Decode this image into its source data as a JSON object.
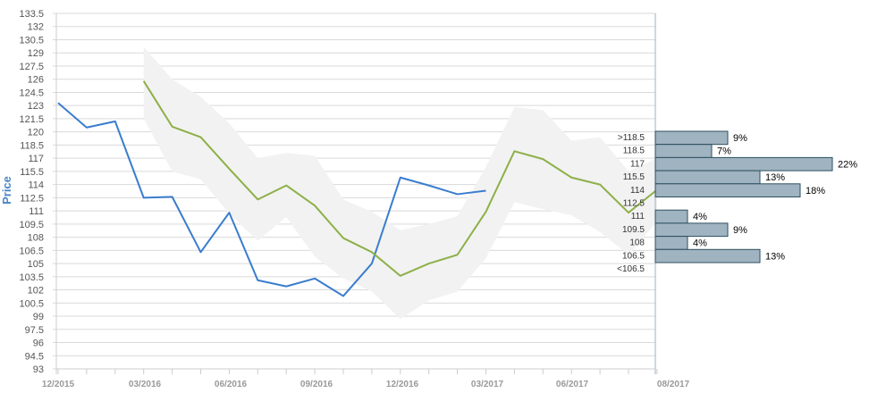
{
  "chart_data": {
    "type": "line",
    "ylabel": "Price",
    "ylim": [
      93,
      133.5
    ],
    "y_ticks": [
      "133.5",
      "132",
      "130.5",
      "129",
      "127.5",
      "126",
      "124.5",
      "123",
      "121.5",
      "120",
      "118.5",
      "117",
      "115.5",
      "114",
      "112.5",
      "111",
      "109.5",
      "108",
      "106.5",
      "105",
      "103.5",
      "102",
      "100.5",
      "99",
      "97.5",
      "96",
      "94.5",
      "93"
    ],
    "x_tick_labels": [
      "12/2015",
      "03/2016",
      "06/2016",
      "09/2016",
      "12/2016",
      "03/2017",
      "06/2017",
      "08/2017"
    ],
    "grid": true,
    "series": [
      {
        "color": "#3a7dce",
        "x": [
          "2015-12",
          "2016-01",
          "2016-02",
          "2016-03",
          "2016-04",
          "2016-05",
          "2016-06",
          "2016-07",
          "2016-08",
          "2016-09",
          "2016-10",
          "2016-11",
          "2016-12",
          "2017-01",
          "2017-02",
          "2017-03"
        ],
        "values": [
          123.3,
          120.5,
          121.2,
          112.5,
          112.6,
          106.3,
          110.8,
          103.1,
          102.4,
          103.3,
          101.3,
          105.0,
          114.8,
          113.9,
          112.9,
          113.3
        ]
      },
      {
        "color": "#8db048",
        "x": [
          "2016-03",
          "2016-04",
          "2016-05",
          "2016-06",
          "2016-07",
          "2016-08",
          "2016-09",
          "2016-10",
          "2016-11",
          "2016-12",
          "2017-01",
          "2017-02",
          "2017-03",
          "2017-04",
          "2017-05",
          "2017-06",
          "2017-07",
          "2017-08",
          "2017-09"
        ],
        "values": [
          125.8,
          120.6,
          119.4,
          115.8,
          112.3,
          113.9,
          111.6,
          107.9,
          106.3,
          103.6,
          105.0,
          106.0,
          110.9,
          117.8,
          116.9,
          114.8,
          114.0,
          110.8,
          113.4
        ]
      }
    ],
    "band": {
      "color": "#f2f2f2",
      "x": [
        "2016-03",
        "2016-04",
        "2016-05",
        "2016-06",
        "2016-07",
        "2016-08",
        "2016-09",
        "2016-10",
        "2016-11",
        "2016-12",
        "2017-01",
        "2017-02",
        "2017-03",
        "2017-04",
        "2017-05",
        "2017-06",
        "2017-07",
        "2017-08",
        "2017-09"
      ],
      "upper": [
        129.7,
        126.0,
        124.0,
        121.0,
        117.0,
        117.6,
        117.3,
        112.3,
        110.9,
        108.8,
        109.5,
        110.4,
        116.0,
        122.8,
        122.5,
        119.0,
        119.4,
        115.5,
        117.0
      ],
      "lower": [
        121.5,
        115.5,
        114.6,
        110.7,
        107.6,
        110.3,
        105.8,
        103.3,
        101.8,
        98.7,
        100.8,
        101.8,
        105.6,
        112.0,
        111.2,
        110.5,
        108.6,
        106.0,
        109.8
      ]
    },
    "distribution": {
      "color": "#9fb3c0",
      "buckets": [
        {
          "label": ">118.5",
          "percent": 9,
          "pct_label": "9%"
        },
        {
          "label": "118.5",
          "percent": 7,
          "pct_label": "7%"
        },
        {
          "label": "117",
          "percent": 22,
          "pct_label": "22%"
        },
        {
          "label": "115.5",
          "percent": 13,
          "pct_label": "13%"
        },
        {
          "label": "114",
          "percent": 18,
          "pct_label": "18%"
        },
        {
          "label": "112.5",
          "percent": 0,
          "pct_label": ""
        },
        {
          "label": "111",
          "percent": 4,
          "pct_label": "4%"
        },
        {
          "label": "109.5",
          "percent": 9,
          "pct_label": "9%"
        },
        {
          "label": "108",
          "percent": 4,
          "pct_label": "4%"
        },
        {
          "label": "106.5",
          "percent": 13,
          "pct_label": "13%"
        },
        {
          "label": "<106.5",
          "percent": 0,
          "pct_label": ""
        }
      ]
    }
  }
}
